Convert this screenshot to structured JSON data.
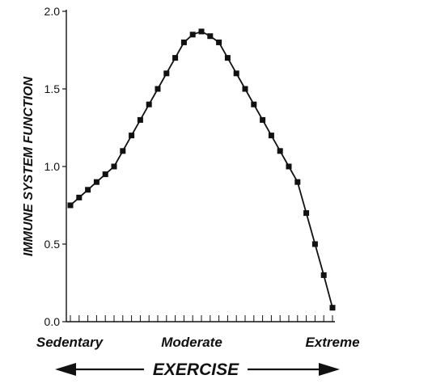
{
  "chart_data": {
    "type": "line",
    "title": "",
    "xlabel": "EXERCISE",
    "ylabel": "IMMUNE SYSTEM FUNCTION",
    "ylim": [
      0,
      2.0
    ],
    "yticks": [
      "0.0",
      "0.5",
      "1.0",
      "1.5",
      "2.0"
    ],
    "x_category_labels": [
      "Sedentary",
      "Moderate",
      "Extreme"
    ],
    "grid": false,
    "legend": "none",
    "colors": {
      "line": "#111111",
      "marker": "#111111"
    },
    "series": [
      {
        "x": [
          0,
          1,
          2,
          3,
          4,
          5,
          6,
          7,
          8,
          9,
          10,
          11,
          12,
          13,
          14,
          15,
          16,
          17,
          18,
          19,
          20,
          21,
          22,
          23,
          24,
          25,
          26,
          27,
          28,
          29,
          30
        ],
        "values": [
          0.75,
          0.8,
          0.85,
          0.9,
          0.95,
          1.0,
          1.1,
          1.2,
          1.3,
          1.4,
          1.5,
          1.6,
          1.7,
          1.8,
          1.85,
          1.87,
          1.84,
          1.8,
          1.7,
          1.6,
          1.5,
          1.4,
          1.3,
          1.2,
          1.1,
          1.0,
          0.9,
          0.7,
          0.5,
          0.3,
          0.09
        ]
      }
    ]
  }
}
